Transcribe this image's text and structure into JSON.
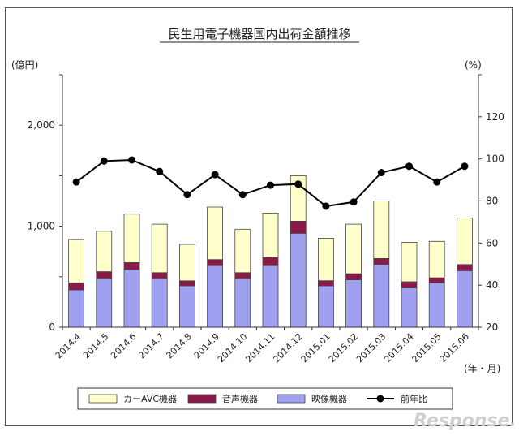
{
  "chart_data": {
    "type": "bar",
    "stacked": true,
    "title": "民生用電子機器国内出荷金額推移",
    "ylabel_left": "(億円)",
    "ylabel_right": "(%)",
    "xlabel": "(年・月)",
    "ylim_left": [
      0,
      2500
    ],
    "ylim_right": [
      20,
      140
    ],
    "yticks_left": [
      "0",
      "1,000",
      "2,000"
    ],
    "yticks_left_values": [
      0,
      1000,
      2000
    ],
    "yticks_right": [
      "20",
      "40",
      "60",
      "80",
      "100",
      "120"
    ],
    "yticks_right_values": [
      20,
      40,
      60,
      80,
      100,
      120
    ],
    "categories": [
      "2014.4",
      "2014.5",
      "2014.6",
      "2014.7",
      "2014.8",
      "2014.9",
      "2014.10",
      "2014.11",
      "2014.12",
      "2015.01",
      "2015.02",
      "2015.03",
      "2015.04",
      "2015.05",
      "2015.06"
    ],
    "series": [
      {
        "name": "映像機器",
        "axis": "left",
        "color": "#a0a0f0",
        "values": [
          370,
          480,
          570,
          480,
          410,
          610,
          480,
          610,
          930,
          410,
          470,
          620,
          390,
          440,
          560
        ]
      },
      {
        "name": "音声機器",
        "axis": "left",
        "color": "#8b1a4a",
        "values": [
          70,
          70,
          70,
          60,
          50,
          60,
          60,
          80,
          120,
          50,
          60,
          60,
          60,
          50,
          60
        ]
      },
      {
        "name": "カーAVC機器",
        "axis": "left",
        "color": "#ffffcc",
        "values": [
          430,
          400,
          480,
          480,
          360,
          520,
          430,
          440,
          450,
          420,
          490,
          570,
          390,
          360,
          460
        ]
      },
      {
        "name": "前年比",
        "type": "line",
        "axis": "right",
        "color": "#000000",
        "values": [
          89,
          99,
          99.5,
          94,
          83,
          92.5,
          83,
          87.5,
          88,
          77.5,
          79.5,
          93.5,
          96.5,
          89,
          96.5
        ]
      }
    ],
    "legend_position": "bottom",
    "grid": false
  },
  "watermark": "Response."
}
